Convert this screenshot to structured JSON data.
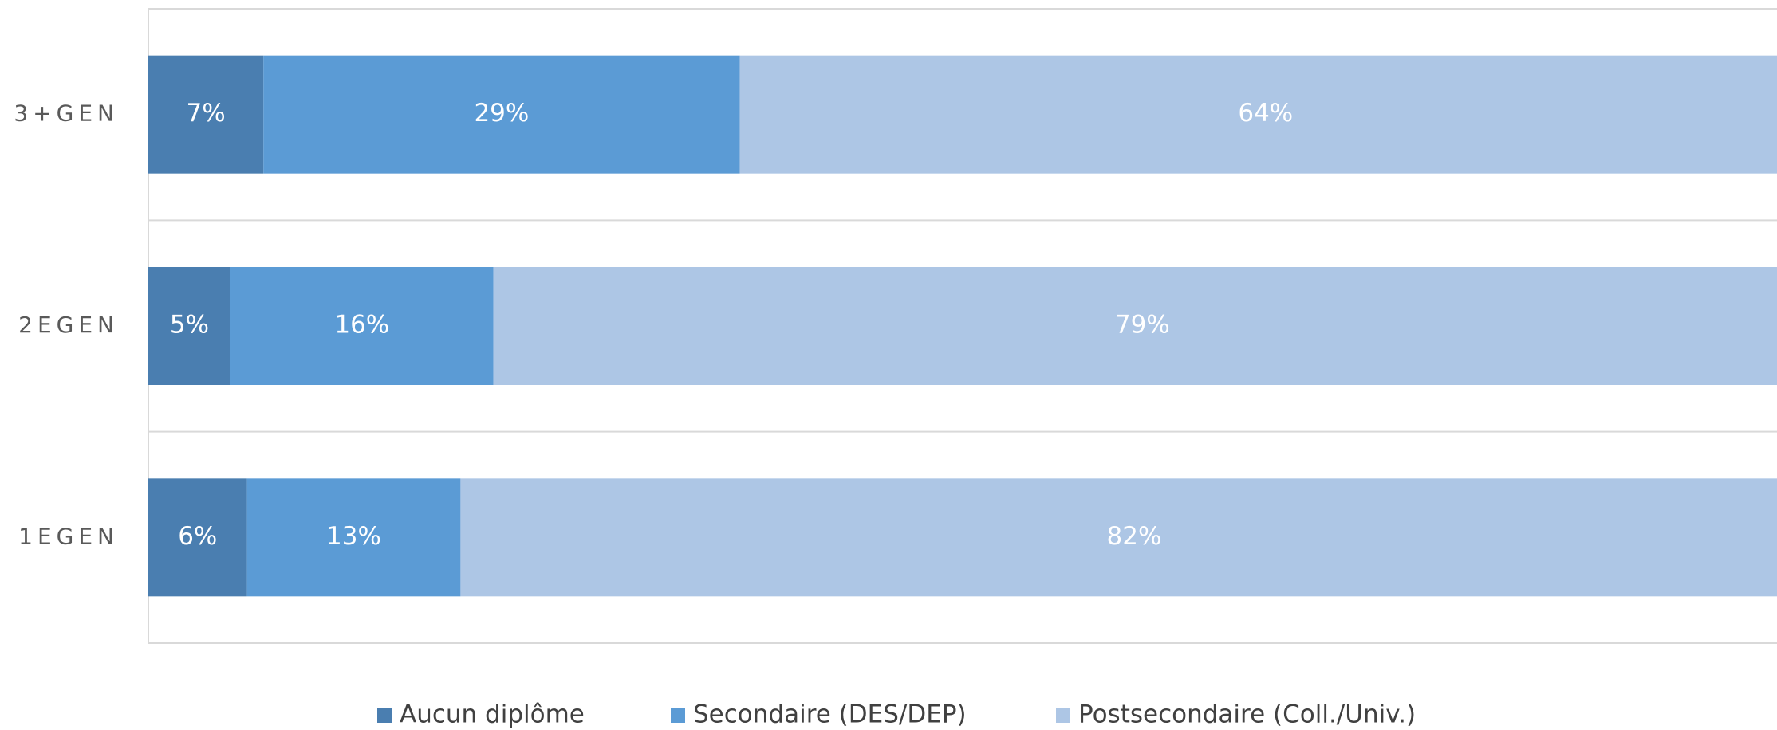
{
  "chart_data": {
    "type": "stacked-horizontal-bar",
    "categories": [
      "3+GEN",
      "2EGEN",
      "1EGEN"
    ],
    "series": [
      {
        "name": "Aucun diplôme",
        "color": "#4a7eb0",
        "values": [
          7,
          5,
          6
        ],
        "value_labels": [
          "7%",
          "5%",
          "6%"
        ]
      },
      {
        "name": "Secondaire (DES/DEP)",
        "color": "#5b9bd5",
        "values": [
          29,
          16,
          13
        ],
        "value_labels": [
          "29%",
          "16%",
          "13%"
        ]
      },
      {
        "name": "Postsecondaire (Coll./Univ.)",
        "color": "#adc6e5",
        "values": [
          64,
          79,
          82
        ],
        "value_labels": [
          "64%",
          "79%",
          "82%"
        ]
      }
    ],
    "xlim": [
      0,
      100
    ],
    "legend": "bottom"
  }
}
